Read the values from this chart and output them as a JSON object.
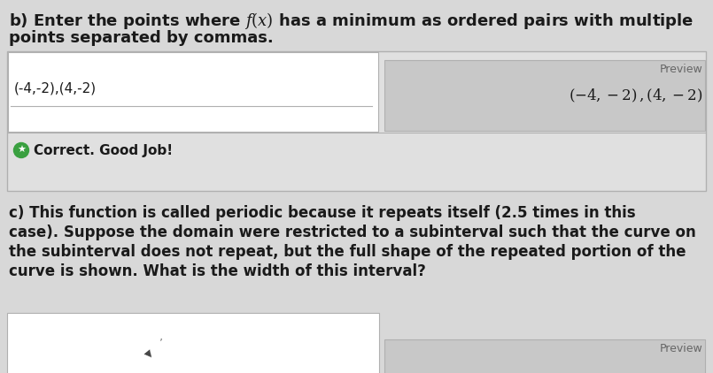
{
  "background_color": "#d8d8d8",
  "line1": "b) Enter the points where $f(x)$ has a minimum as ordered pairs with multiple",
  "line2": "points separated by commas.",
  "input_box_text": "(-4,-2),(4,-2)",
  "preview_label": "Preview",
  "preview_text": "(-4, −2) , (4, −2)",
  "correct_text": "Correct. Good Job!",
  "section_c_lines": [
    "c) This function is called periodic because it repeats itself (2.5 times in this",
    "case). Suppose the domain were restricted to a subinterval such that the curve on",
    "the subinterval does not repeat, but the full shape of the repeated portion of the",
    "curve is shown. What is the width of this interval?"
  ],
  "preview_label_c": "Preview",
  "white_box_color": "#f0f0f0",
  "gray_box_color": "#c8c8c8",
  "outer_box_color": "#e0e0e0",
  "correct_row_color": "#d8d8d8",
  "border_color": "#b0b0b0",
  "correct_icon_color": "#3aa040",
  "text_color": "#1a1a1a",
  "gray_label_color": "#666666",
  "font_size_heading": 13,
  "font_size_body": 12,
  "font_size_input": 11,
  "font_size_preview_label": 9,
  "font_size_preview_text": 12,
  "font_size_correct": 11
}
